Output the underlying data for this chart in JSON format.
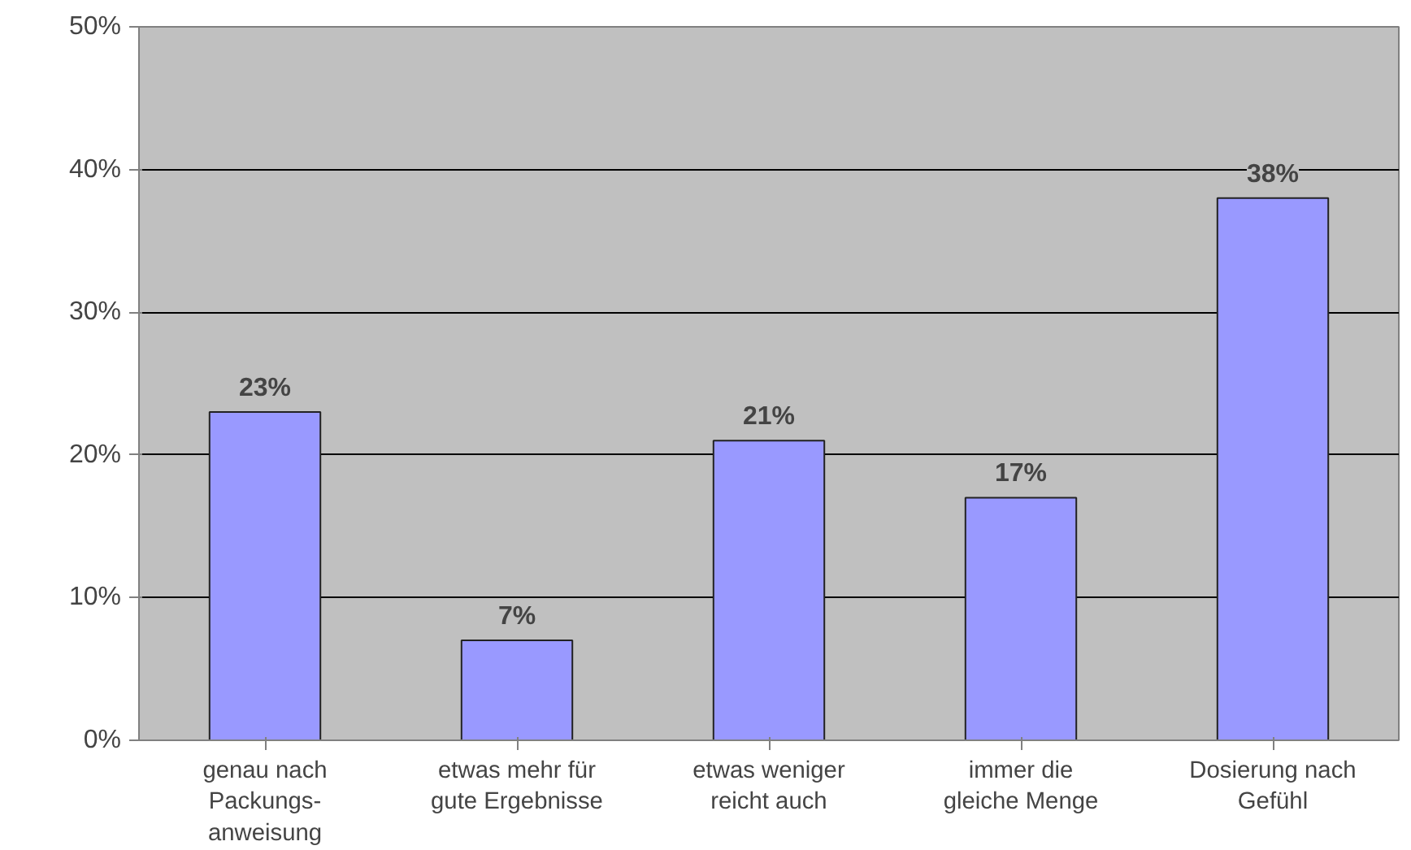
{
  "chart_data": {
    "type": "bar",
    "categories": [
      "genau nach\nPackungs-\nanweisung",
      "etwas mehr für\ngute Ergebnisse",
      "etwas weniger\nreicht auch",
      "immer die\ngleiche Menge",
      "Dosierung nach\nGefühl"
    ],
    "values": [
      23,
      7,
      21,
      17,
      38
    ],
    "value_labels": [
      "23%",
      "7%",
      "21%",
      "17%",
      "38%"
    ],
    "color": "#9999ff",
    "ylim": [
      0,
      50
    ],
    "yticks": [
      {
        "value": 0,
        "label": "0%"
      },
      {
        "value": 10,
        "label": "10%"
      },
      {
        "value": 20,
        "label": "20%"
      },
      {
        "value": 30,
        "label": "30%"
      },
      {
        "value": 40,
        "label": "40%"
      },
      {
        "value": 50,
        "label": "50%"
      }
    ],
    "grid": "y"
  }
}
